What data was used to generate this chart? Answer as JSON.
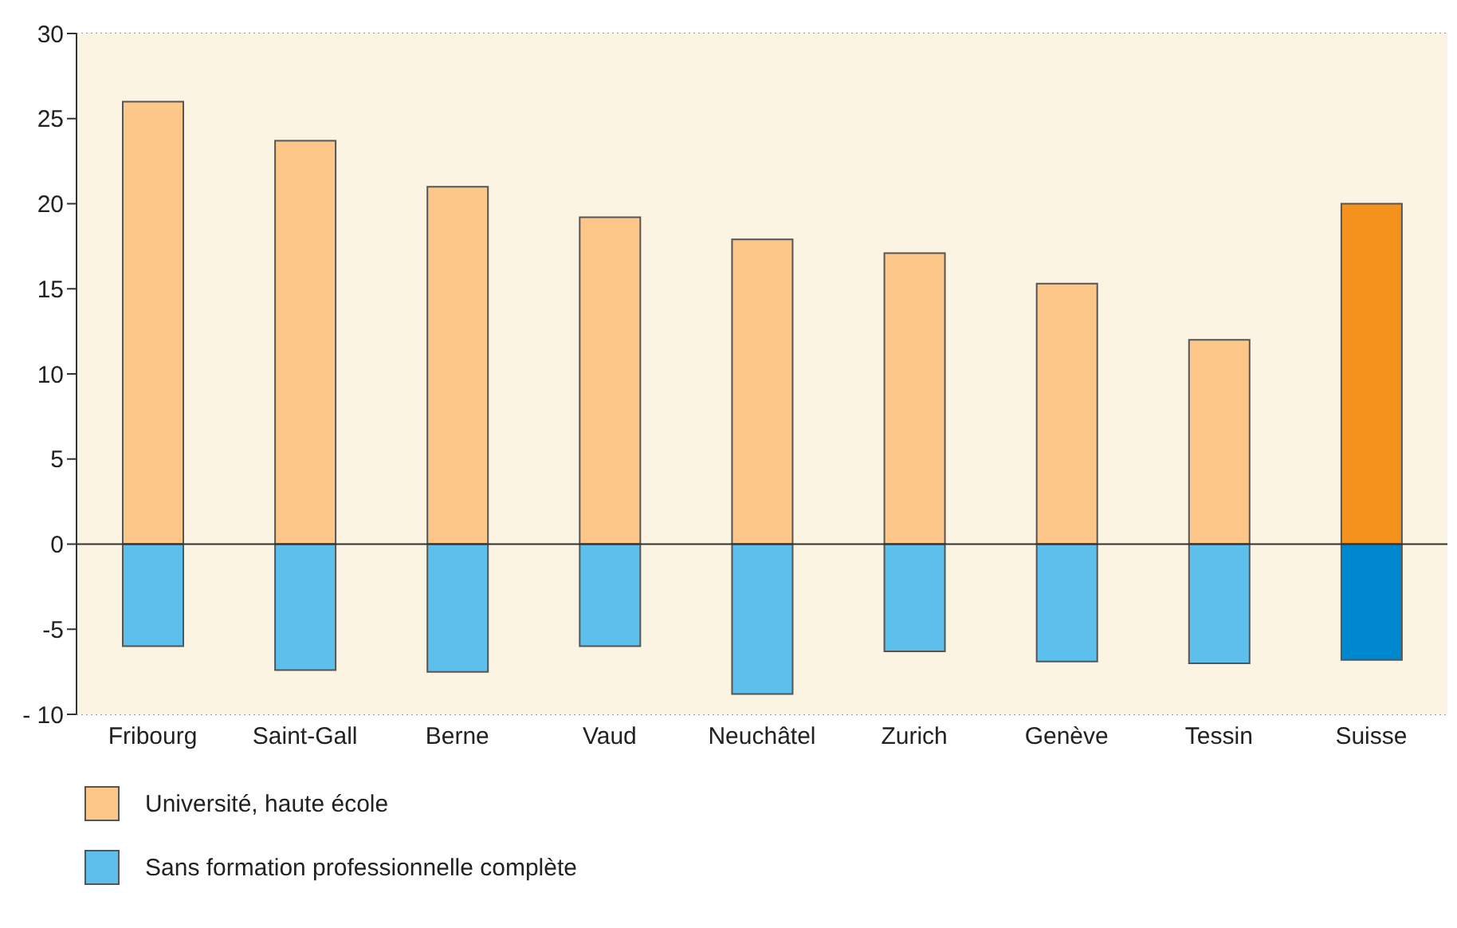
{
  "chart_data": {
    "type": "bar",
    "stacked": true,
    "categories": [
      "Fribourg",
      "Saint-Gall",
      "Berne",
      "Vaud",
      "Neuchâtel",
      "Zurich",
      "Genève",
      "Tessin",
      "Suisse"
    ],
    "series": [
      {
        "name": "Université, haute école",
        "color": "#fdc78a",
        "colors": [
          "#fdc78a",
          "#fdc78a",
          "#fdc78a",
          "#fdc78a",
          "#fdc78a",
          "#fdc78a",
          "#fdc78a",
          "#fdc78a",
          "#f5921e"
        ],
        "values": [
          26.0,
          23.7,
          21.0,
          19.2,
          17.9,
          17.1,
          15.3,
          12.0,
          20.0
        ]
      },
      {
        "name": "Sans formation professionnelle complète",
        "color": "#5dbfeb",
        "colors": [
          "#5dbfeb",
          "#5dbfeb",
          "#5dbfeb",
          "#5dbfeb",
          "#5dbfeb",
          "#5dbfeb",
          "#5dbfeb",
          "#5dbfeb",
          "#0088cf"
        ],
        "values": [
          -6.0,
          -7.4,
          -7.5,
          -6.0,
          -8.8,
          -6.3,
          -6.9,
          -7.0,
          -6.8
        ]
      }
    ],
    "ylim": [
      -10,
      30
    ],
    "yticks": [
      {
        "value": -10,
        "label": "- 10"
      },
      -5,
      0,
      5,
      10,
      15,
      20,
      25,
      30
    ],
    "grid": "y",
    "legend": "bottom left"
  }
}
